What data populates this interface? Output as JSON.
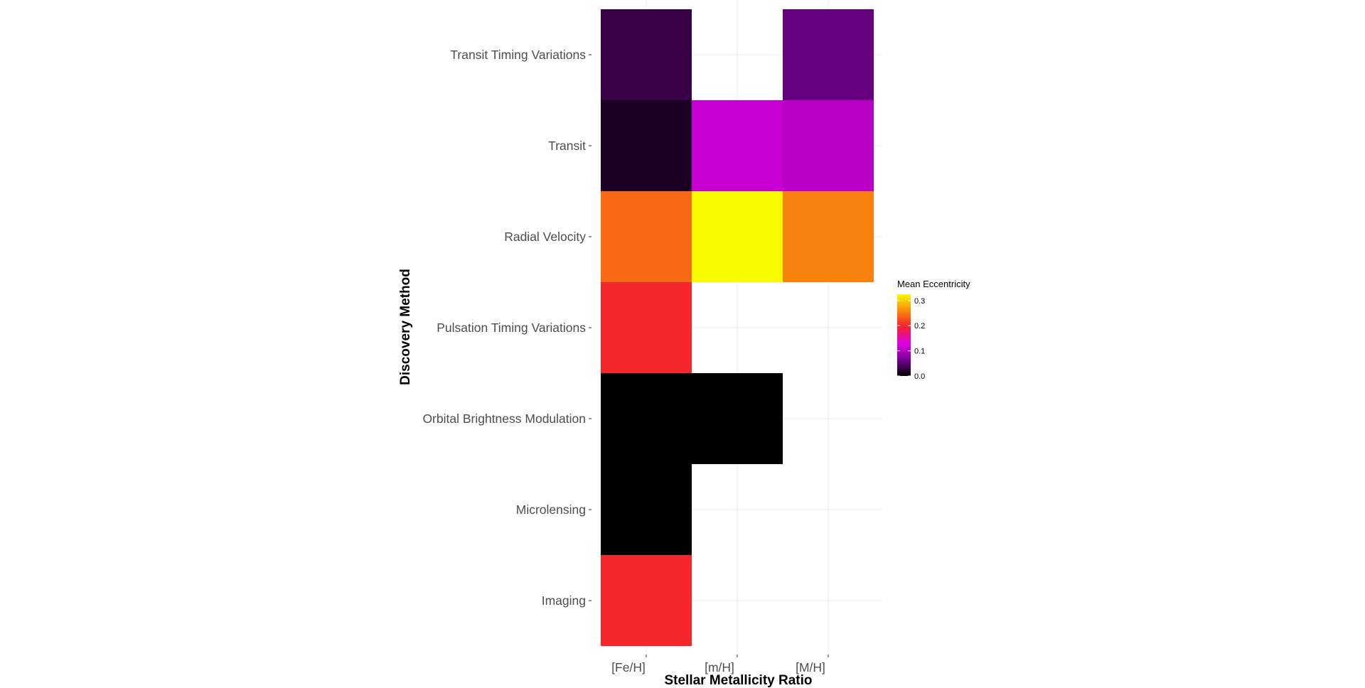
{
  "chart_data": {
    "type": "heatmap",
    "xlabel": "Stellar Metallicity Ratio",
    "ylabel": "Discovery Method",
    "x_categories": [
      "[Fe/H]",
      "[m/H]",
      "[M/H]"
    ],
    "y_categories": [
      "Imaging",
      "Microlensing",
      "Orbital Brightness Modulation",
      "Pulsation Timing Variations",
      "Radial Velocity",
      "Transit",
      "Transit Timing Variations"
    ],
    "cells": [
      {
        "x": "[Fe/H]",
        "y": "Transit Timing Variations",
        "value": 0.03
      },
      {
        "x": "[M/H]",
        "y": "Transit Timing Variations",
        "value": 0.055
      },
      {
        "x": "[Fe/H]",
        "y": "Transit",
        "value": 0.015
      },
      {
        "x": "[m/H]",
        "y": "Transit",
        "value": 0.115
      },
      {
        "x": "[M/H]",
        "y": "Transit",
        "value": 0.105
      },
      {
        "x": "[Fe/H]",
        "y": "Radial Velocity",
        "value": 0.24
      },
      {
        "x": "[m/H]",
        "y": "Radial Velocity",
        "value": 0.325
      },
      {
        "x": "[M/H]",
        "y": "Radial Velocity",
        "value": 0.255
      },
      {
        "x": "[Fe/H]",
        "y": "Pulsation Timing Variations",
        "value": 0.2
      },
      {
        "x": "[Fe/H]",
        "y": "Orbital Brightness Modulation",
        "value": 0.0
      },
      {
        "x": "[m/H]",
        "y": "Orbital Brightness Modulation",
        "value": 0.0
      },
      {
        "x": "[Fe/H]",
        "y": "Microlensing",
        "value": 0.0
      },
      {
        "x": "[Fe/H]",
        "y": "Imaging",
        "value": 0.2
      }
    ],
    "legend": {
      "title": "Mean Eccentricity",
      "breaks": [
        0.0,
        0.1,
        0.2,
        0.3
      ],
      "break_labels": [
        "0.0",
        "0.1",
        "0.2",
        "0.3"
      ],
      "range": [
        0.0,
        0.325
      ],
      "colors": [
        "#000000",
        "#7a0096",
        "#e000e6",
        "#f51f2e",
        "#f88a0a",
        "#f8fa00"
      ]
    },
    "grid": true,
    "legend_position": "right"
  }
}
